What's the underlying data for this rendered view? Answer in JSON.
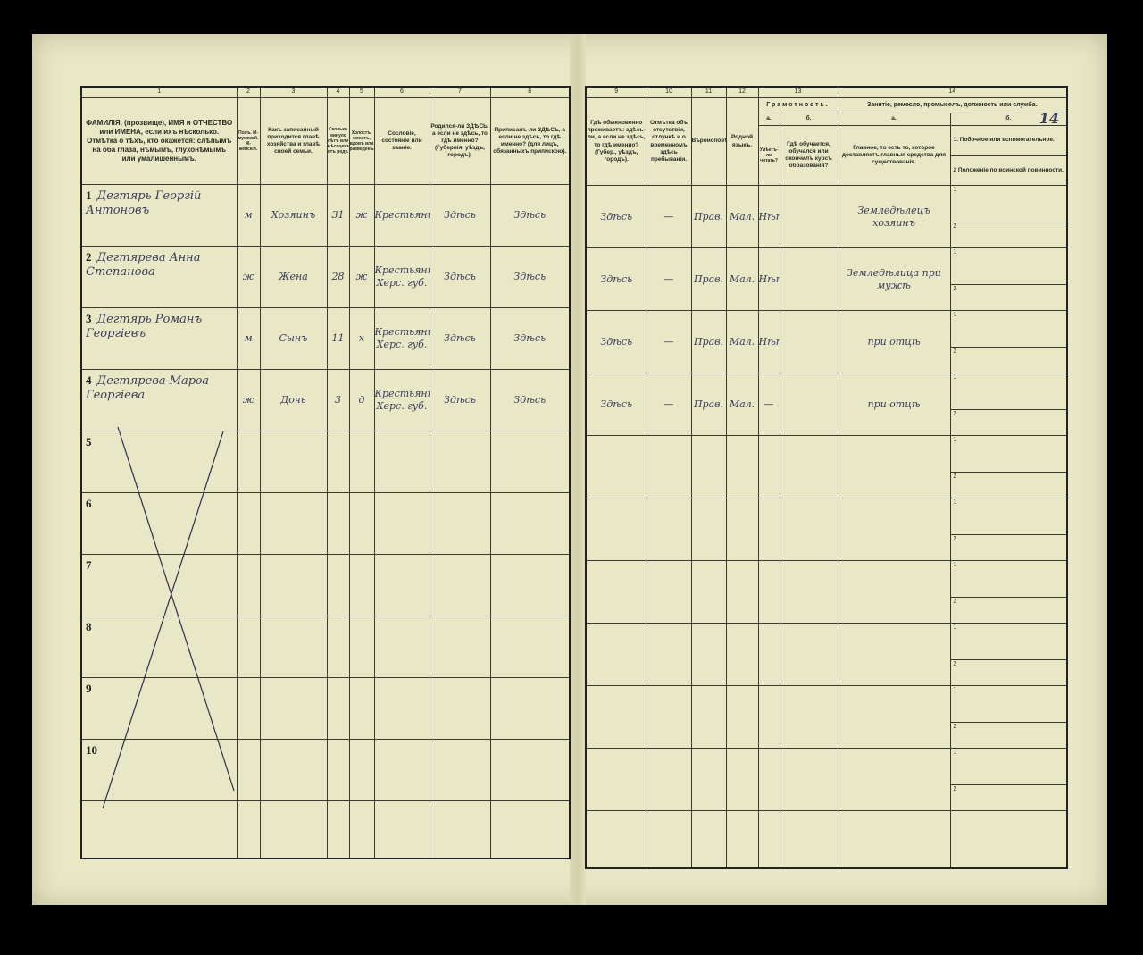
{
  "colors": {
    "paper": "#e8e7c6",
    "ink": "#3b3d5a",
    "print": "#2a2a22",
    "background": "#000000"
  },
  "page_number_handwritten": "14",
  "left_headers": {
    "numbers": [
      "1",
      "2",
      "3",
      "4",
      "5",
      "6",
      "7",
      "8"
    ],
    "col1": "ФАМИЛІЯ, (прозвище), ИМЯ и ОТЧЕСТВО или ИМЕНА, если ихъ нѣсколько. Отмѣтка о тѣхъ, кто окажется: слѣпымъ на оба глаза, нѣмымъ, глухонѣмымъ или умалишеннымъ.",
    "col2": "Полъ. М-мужской. Ж-женскій.",
    "col3": "Какъ записанный приходится главѣ хозяйства и главѣ своей семьи.",
    "col4": "Сколько минуло лѣтъ или мѣсяцевъ отъ роду.",
    "col5": "Холостъ, женатъ, вдовъ или разведенъ.",
    "col6": "Сословіе, состояніе или званіе.",
    "col7": "Родился-ли ЗДѢСЬ, а если не здѣсь, то гдѣ именно? (Губернія, уѣздъ, городъ).",
    "col8": "Приписанъ-ли ЗДѢСЬ, а если не здѣсь, то гдѣ именно? (для лицъ, обязанныхъ припискою)."
  },
  "right_headers": {
    "numbers": [
      "9",
      "10",
      "11",
      "12",
      "13",
      "14"
    ],
    "col9": "Гдѣ обыкновенно проживаетъ: здѣсь-ли, а если не здѣсь, то гдѣ именно? (Губер., уѣздъ, городъ).",
    "col10": "Отмѣтка объ отсутствіи, отлучкѣ и о временномъ здѣсь пребываніи.",
    "col11": "Вѣроисповѣданіе.",
    "col12": "Родной языкъ.",
    "col13": "Грамотность.",
    "col13a_letter": "а.",
    "col13a": "Умѣетъ-ли читать?",
    "col13b_letter": "б.",
    "col13b": "Гдѣ обучается, обучался или окончилъ курсъ образованія?",
    "col14": "Занятіе, ремесло, промыселъ, должность или служба.",
    "col14a_letter": "а.",
    "col14a": "Главное, то есть то, которое доставляетъ главныя средства для существованія.",
    "col14b_letter": "б.",
    "col14b_1": "1. Побочное или вспомогательное.",
    "col14b_2": "2 Положеніе по воинской повинности."
  },
  "sub_labels": [
    "1",
    "2"
  ],
  "rows": [
    {
      "n": "1",
      "name": "Дегтярь Георгій Антоновъ",
      "sex": "м",
      "relation": "Хозяинъ",
      "age": "31",
      "marital": "ж",
      "estate": "Крестьянинъ",
      "born": "Здѣсь",
      "registered": "Здѣсь",
      "residence": "Здѣсь",
      "absence": "—",
      "religion": "Прав.",
      "language": "Мал.",
      "literate": "Нѣтъ",
      "education": "",
      "occupation": "Земледѣлецъ хозяинъ",
      "side": "",
      "military": ""
    },
    {
      "n": "2",
      "name": "Дегтярева Анна Степанова",
      "sex": "ж",
      "relation": "Жена",
      "age": "28",
      "marital": "ж",
      "estate": "Крестьянка Херс. губ.",
      "born": "Здѣсь",
      "registered": "Здѣсь",
      "residence": "Здѣсь",
      "absence": "—",
      "religion": "Прав.",
      "language": "Мал.",
      "literate": "Нѣтъ",
      "education": "",
      "occupation": "Земледѣлица при мужѣ",
      "side": "",
      "military": ""
    },
    {
      "n": "3",
      "name": "Дегтярь Романъ Георгіевъ",
      "sex": "м",
      "relation": "Сынъ",
      "age": "11",
      "marital": "х",
      "estate": "Крестьянинъ Херс. губ.",
      "born": "Здѣсь",
      "registered": "Здѣсь",
      "residence": "Здѣсь",
      "absence": "—",
      "religion": "Прав.",
      "language": "Мал.",
      "literate": "Нѣтъ",
      "education": "",
      "occupation": "при отцѣ",
      "side": "",
      "military": ""
    },
    {
      "n": "4",
      "name": "Дегтярева Марѳа Георгіева",
      "sex": "ж",
      "relation": "Дочь",
      "age": "3",
      "marital": "д",
      "estate": "Крестьянка Херс. губ.",
      "born": "Здѣсь",
      "registered": "Здѣсь",
      "residence": "Здѣсь",
      "absence": "—",
      "religion": "Прав.",
      "language": "Мал.",
      "literate": "—",
      "education": "",
      "occupation": "при отцѣ",
      "side": "",
      "military": ""
    },
    {
      "n": "5"
    },
    {
      "n": "6"
    },
    {
      "n": "7"
    },
    {
      "n": "8"
    },
    {
      "n": "9"
    },
    {
      "n": "10"
    }
  ]
}
